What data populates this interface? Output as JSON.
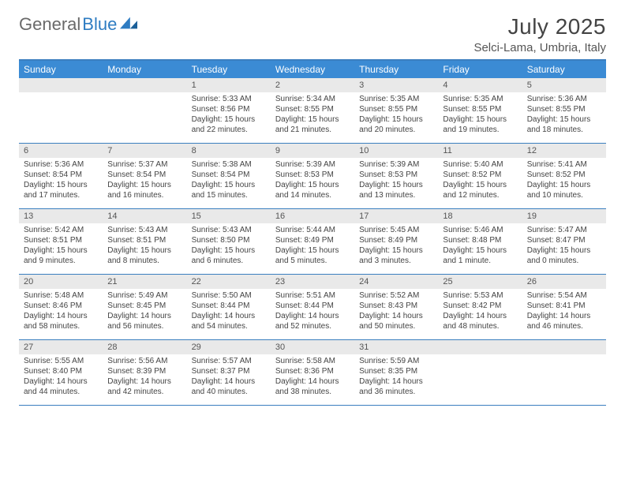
{
  "brand": {
    "part1": "General",
    "part2": "Blue"
  },
  "title": "July 2025",
  "location": "Selci-Lama, Umbria, Italy",
  "colors": {
    "header_bg": "#3b8bd4",
    "border": "#3b7fbf",
    "daynum_bg": "#e9e9e9",
    "text": "#444444",
    "brand_gray": "#6a6a6a",
    "brand_blue": "#2e7cc2"
  },
  "weekdays": [
    "Sunday",
    "Monday",
    "Tuesday",
    "Wednesday",
    "Thursday",
    "Friday",
    "Saturday"
  ],
  "weeks": [
    [
      {
        "empty": true
      },
      {
        "empty": true
      },
      {
        "num": "1",
        "sunrise": "Sunrise: 5:33 AM",
        "sunset": "Sunset: 8:56 PM",
        "daylight": "Daylight: 15 hours and 22 minutes."
      },
      {
        "num": "2",
        "sunrise": "Sunrise: 5:34 AM",
        "sunset": "Sunset: 8:55 PM",
        "daylight": "Daylight: 15 hours and 21 minutes."
      },
      {
        "num": "3",
        "sunrise": "Sunrise: 5:35 AM",
        "sunset": "Sunset: 8:55 PM",
        "daylight": "Daylight: 15 hours and 20 minutes."
      },
      {
        "num": "4",
        "sunrise": "Sunrise: 5:35 AM",
        "sunset": "Sunset: 8:55 PM",
        "daylight": "Daylight: 15 hours and 19 minutes."
      },
      {
        "num": "5",
        "sunrise": "Sunrise: 5:36 AM",
        "sunset": "Sunset: 8:55 PM",
        "daylight": "Daylight: 15 hours and 18 minutes."
      }
    ],
    [
      {
        "num": "6",
        "sunrise": "Sunrise: 5:36 AM",
        "sunset": "Sunset: 8:54 PM",
        "daylight": "Daylight: 15 hours and 17 minutes."
      },
      {
        "num": "7",
        "sunrise": "Sunrise: 5:37 AM",
        "sunset": "Sunset: 8:54 PM",
        "daylight": "Daylight: 15 hours and 16 minutes."
      },
      {
        "num": "8",
        "sunrise": "Sunrise: 5:38 AM",
        "sunset": "Sunset: 8:54 PM",
        "daylight": "Daylight: 15 hours and 15 minutes."
      },
      {
        "num": "9",
        "sunrise": "Sunrise: 5:39 AM",
        "sunset": "Sunset: 8:53 PM",
        "daylight": "Daylight: 15 hours and 14 minutes."
      },
      {
        "num": "10",
        "sunrise": "Sunrise: 5:39 AM",
        "sunset": "Sunset: 8:53 PM",
        "daylight": "Daylight: 15 hours and 13 minutes."
      },
      {
        "num": "11",
        "sunrise": "Sunrise: 5:40 AM",
        "sunset": "Sunset: 8:52 PM",
        "daylight": "Daylight: 15 hours and 12 minutes."
      },
      {
        "num": "12",
        "sunrise": "Sunrise: 5:41 AM",
        "sunset": "Sunset: 8:52 PM",
        "daylight": "Daylight: 15 hours and 10 minutes."
      }
    ],
    [
      {
        "num": "13",
        "sunrise": "Sunrise: 5:42 AM",
        "sunset": "Sunset: 8:51 PM",
        "daylight": "Daylight: 15 hours and 9 minutes."
      },
      {
        "num": "14",
        "sunrise": "Sunrise: 5:43 AM",
        "sunset": "Sunset: 8:51 PM",
        "daylight": "Daylight: 15 hours and 8 minutes."
      },
      {
        "num": "15",
        "sunrise": "Sunrise: 5:43 AM",
        "sunset": "Sunset: 8:50 PM",
        "daylight": "Daylight: 15 hours and 6 minutes."
      },
      {
        "num": "16",
        "sunrise": "Sunrise: 5:44 AM",
        "sunset": "Sunset: 8:49 PM",
        "daylight": "Daylight: 15 hours and 5 minutes."
      },
      {
        "num": "17",
        "sunrise": "Sunrise: 5:45 AM",
        "sunset": "Sunset: 8:49 PM",
        "daylight": "Daylight: 15 hours and 3 minutes."
      },
      {
        "num": "18",
        "sunrise": "Sunrise: 5:46 AM",
        "sunset": "Sunset: 8:48 PM",
        "daylight": "Daylight: 15 hours and 1 minute."
      },
      {
        "num": "19",
        "sunrise": "Sunrise: 5:47 AM",
        "sunset": "Sunset: 8:47 PM",
        "daylight": "Daylight: 15 hours and 0 minutes."
      }
    ],
    [
      {
        "num": "20",
        "sunrise": "Sunrise: 5:48 AM",
        "sunset": "Sunset: 8:46 PM",
        "daylight": "Daylight: 14 hours and 58 minutes."
      },
      {
        "num": "21",
        "sunrise": "Sunrise: 5:49 AM",
        "sunset": "Sunset: 8:45 PM",
        "daylight": "Daylight: 14 hours and 56 minutes."
      },
      {
        "num": "22",
        "sunrise": "Sunrise: 5:50 AM",
        "sunset": "Sunset: 8:44 PM",
        "daylight": "Daylight: 14 hours and 54 minutes."
      },
      {
        "num": "23",
        "sunrise": "Sunrise: 5:51 AM",
        "sunset": "Sunset: 8:44 PM",
        "daylight": "Daylight: 14 hours and 52 minutes."
      },
      {
        "num": "24",
        "sunrise": "Sunrise: 5:52 AM",
        "sunset": "Sunset: 8:43 PM",
        "daylight": "Daylight: 14 hours and 50 minutes."
      },
      {
        "num": "25",
        "sunrise": "Sunrise: 5:53 AM",
        "sunset": "Sunset: 8:42 PM",
        "daylight": "Daylight: 14 hours and 48 minutes."
      },
      {
        "num": "26",
        "sunrise": "Sunrise: 5:54 AM",
        "sunset": "Sunset: 8:41 PM",
        "daylight": "Daylight: 14 hours and 46 minutes."
      }
    ],
    [
      {
        "num": "27",
        "sunrise": "Sunrise: 5:55 AM",
        "sunset": "Sunset: 8:40 PM",
        "daylight": "Daylight: 14 hours and 44 minutes."
      },
      {
        "num": "28",
        "sunrise": "Sunrise: 5:56 AM",
        "sunset": "Sunset: 8:39 PM",
        "daylight": "Daylight: 14 hours and 42 minutes."
      },
      {
        "num": "29",
        "sunrise": "Sunrise: 5:57 AM",
        "sunset": "Sunset: 8:37 PM",
        "daylight": "Daylight: 14 hours and 40 minutes."
      },
      {
        "num": "30",
        "sunrise": "Sunrise: 5:58 AM",
        "sunset": "Sunset: 8:36 PM",
        "daylight": "Daylight: 14 hours and 38 minutes."
      },
      {
        "num": "31",
        "sunrise": "Sunrise: 5:59 AM",
        "sunset": "Sunset: 8:35 PM",
        "daylight": "Daylight: 14 hours and 36 minutes."
      },
      {
        "empty": true
      },
      {
        "empty": true
      }
    ]
  ]
}
